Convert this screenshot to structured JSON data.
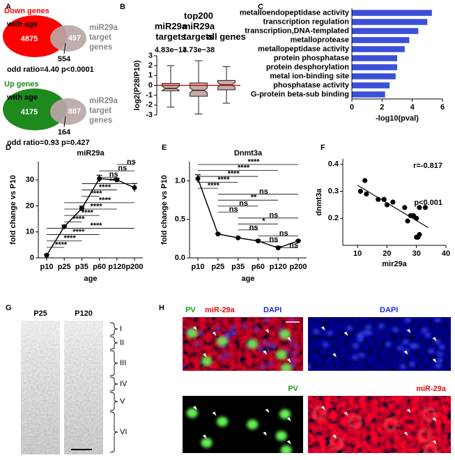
{
  "panel_labels": [
    "A",
    "B",
    "C",
    "D",
    "E",
    "F",
    "G",
    "H"
  ],
  "panel_a": {
    "venns": [
      {
        "group_label": "Down genes",
        "group_sub": "with age",
        "color": "#ff0000",
        "only_group": 4875,
        "only_target": 497,
        "target_label": "miR29a target genes",
        "overlap": 554,
        "stats": "odd ratio=4.40 p<0.0001"
      },
      {
        "group_label": "Up genes",
        "group_sub": "with age",
        "color": "#1e8a1e",
        "only_group": 4175,
        "only_target": 887,
        "target_label": "miR29a target genes",
        "overlap": 164,
        "stats": "odd ratio=0.93 p=0.427"
      }
    ]
  },
  "chart_data": [
    {
      "type": "box",
      "ylabel": "log2(P28/P10)",
      "categories": [
        "miR29a targets",
        "top200 miR29a targets",
        "all genes"
      ],
      "annotations": [
        {
          "category": 0,
          "text": "4.83e−14"
        },
        {
          "category": 1,
          "text": "3.73e−38"
        }
      ],
      "boxes": [
        {
          "whislo": -2.2,
          "q1": -0.55,
          "med": -0.3,
          "q3": 0.2,
          "whishi": 2.0
        },
        {
          "whislo": -2.9,
          "q1": -1.1,
          "med": -0.5,
          "q3": 0.25,
          "whishi": 2.5
        },
        {
          "whislo": -1.8,
          "q1": -0.45,
          "med": 0.05,
          "q3": 0.5,
          "whishi": 1.9
        }
      ],
      "color": "#c8aaa4",
      "hline": 0,
      "hline_color": "#c00000",
      "ylim": [
        -3,
        3
      ],
      "yticks": [
        -3,
        -2,
        -1,
        0,
        1,
        2,
        3
      ]
    },
    {
      "type": "barh",
      "categories": [
        "metalloendopeptidase activity",
        "transcription regulation",
        "transcription,DNA-templated",
        "metalloprotease",
        "metallopeptidase activity",
        "protein phosphatase",
        "protein desphorylation",
        "metal ion-binding site",
        "phosphatase activity",
        "G-protein beta-sub binding"
      ],
      "values": [
        5.3,
        5.0,
        4.4,
        3.8,
        3.5,
        3.0,
        3.0,
        2.9,
        2.5,
        2.2
      ],
      "color": "#3b4fd8",
      "xlabel": "-log10(pval)",
      "xlim": [
        0,
        6
      ],
      "xticks": [
        0,
        2,
        4,
        6
      ]
    },
    {
      "type": "line",
      "title": "miR29a",
      "xlabel": "age",
      "ylabel": "fold change vs P10",
      "categories": [
        "p10",
        "p25",
        "p35",
        "p60",
        "p120",
        "p200"
      ],
      "values": [
        1,
        12,
        19,
        30.5,
        30,
        27
      ],
      "errors": [
        0.3,
        0.6,
        0.9,
        1.3,
        0.6,
        1.6
      ],
      "color": "#000000",
      "ylim": [
        0,
        37
      ],
      "yticks": [
        0,
        10,
        20,
        30
      ],
      "comparisons": [
        {
          "from": 4,
          "to": 5,
          "label": "ns"
        },
        {
          "from": 3,
          "to": 5,
          "label": "ns"
        },
        {
          "from": 3,
          "to": 4,
          "label": "ns"
        },
        {
          "from": 2,
          "to": 5,
          "label": "***"
        },
        {
          "from": 2,
          "to": 4,
          "label": "****"
        },
        {
          "from": 2,
          "to": 3,
          "label": "****"
        },
        {
          "from": 1,
          "to": 5,
          "label": "****"
        },
        {
          "from": 1,
          "to": 4,
          "label": "****"
        },
        {
          "from": 1,
          "to": 3,
          "label": "****"
        },
        {
          "from": 1,
          "to": 2,
          "label": "****"
        },
        {
          "from": 0,
          "to": 5,
          "label": "****"
        },
        {
          "from": 0,
          "to": 3,
          "label": "****"
        },
        {
          "from": 0,
          "to": 2,
          "label": "****"
        },
        {
          "from": 0,
          "to": 1,
          "label": "****"
        }
      ]
    },
    {
      "type": "line",
      "title": "Dnmt3a",
      "xlabel": "age",
      "ylabel": "fold change vs P10",
      "categories": [
        "p10",
        "p25",
        "p35",
        "p60",
        "p120",
        "p200"
      ],
      "values": [
        1.03,
        0.31,
        0.26,
        0.22,
        0.13,
        0.22
      ],
      "errors": [
        0.05,
        0.01,
        0.01,
        0.015,
        0.02,
        0.01
      ],
      "color": "#000000",
      "ylim": [
        0,
        1.25
      ],
      "yticks": [
        {
          "value": 0,
          "label": "0.0"
        },
        0.5,
        {
          "value": 1,
          "label": "1.0"
        }
      ],
      "comparisons": [
        {
          "from": 0,
          "to": 5,
          "label": "****"
        },
        {
          "from": 0,
          "to": 4,
          "label": "****"
        },
        {
          "from": 0,
          "to": 3,
          "label": "****"
        },
        {
          "from": 0,
          "to": 2,
          "label": "****"
        },
        {
          "from": 0,
          "to": 1,
          "label": "****"
        },
        {
          "from": 1,
          "to": 5,
          "label": "ns"
        },
        {
          "from": 1,
          "to": 4,
          "label": "**"
        },
        {
          "from": 1,
          "to": 3,
          "label": "ns"
        },
        {
          "from": 1,
          "to": 2,
          "label": "ns"
        },
        {
          "from": 2,
          "to": 5,
          "label": "ns"
        },
        {
          "from": 2,
          "to": 4,
          "label": "*"
        },
        {
          "from": 2,
          "to": 3,
          "label": "ns"
        },
        {
          "from": 3,
          "to": 5,
          "label": "ns"
        },
        {
          "from": 3,
          "to": 4,
          "label": "ns"
        },
        {
          "from": 4,
          "to": 5,
          "label": "ns"
        }
      ]
    },
    {
      "type": "scatter",
      "xlabel": "mir29a",
      "ylabel": "dnmt3a",
      "x": [
        11,
        12.5,
        13,
        17,
        19,
        20,
        22,
        26,
        27,
        28,
        29,
        30,
        31,
        33,
        30,
        31,
        30.5
      ],
      "y": [
        0.3,
        0.34,
        0.29,
        0.27,
        0.27,
        0.25,
        0.26,
        0.24,
        0.19,
        0.21,
        0.21,
        0.2,
        0.24,
        0.24,
        0.13,
        0.14,
        0.13
      ],
      "color": "#000000",
      "fit_line": true,
      "xlim": [
        5,
        40
      ],
      "xticks": [
        10,
        20,
        30,
        40
      ],
      "ylim": [
        0.1,
        0.42
      ],
      "yticks": [
        0.2,
        0.3,
        0.4
      ],
      "annotations": [
        "r=-0.817",
        "p<0.001"
      ]
    }
  ],
  "panel_g": {
    "labels": [
      "P25",
      "P120"
    ],
    "layers": [
      "I",
      "II",
      "III",
      "IV",
      "V",
      "VI"
    ]
  },
  "panel_h": {
    "merge_labels": [
      "PV",
      "miR-29a",
      "DAPI"
    ],
    "channels": [
      "DAPI",
      "PV",
      "miR-29a"
    ]
  }
}
